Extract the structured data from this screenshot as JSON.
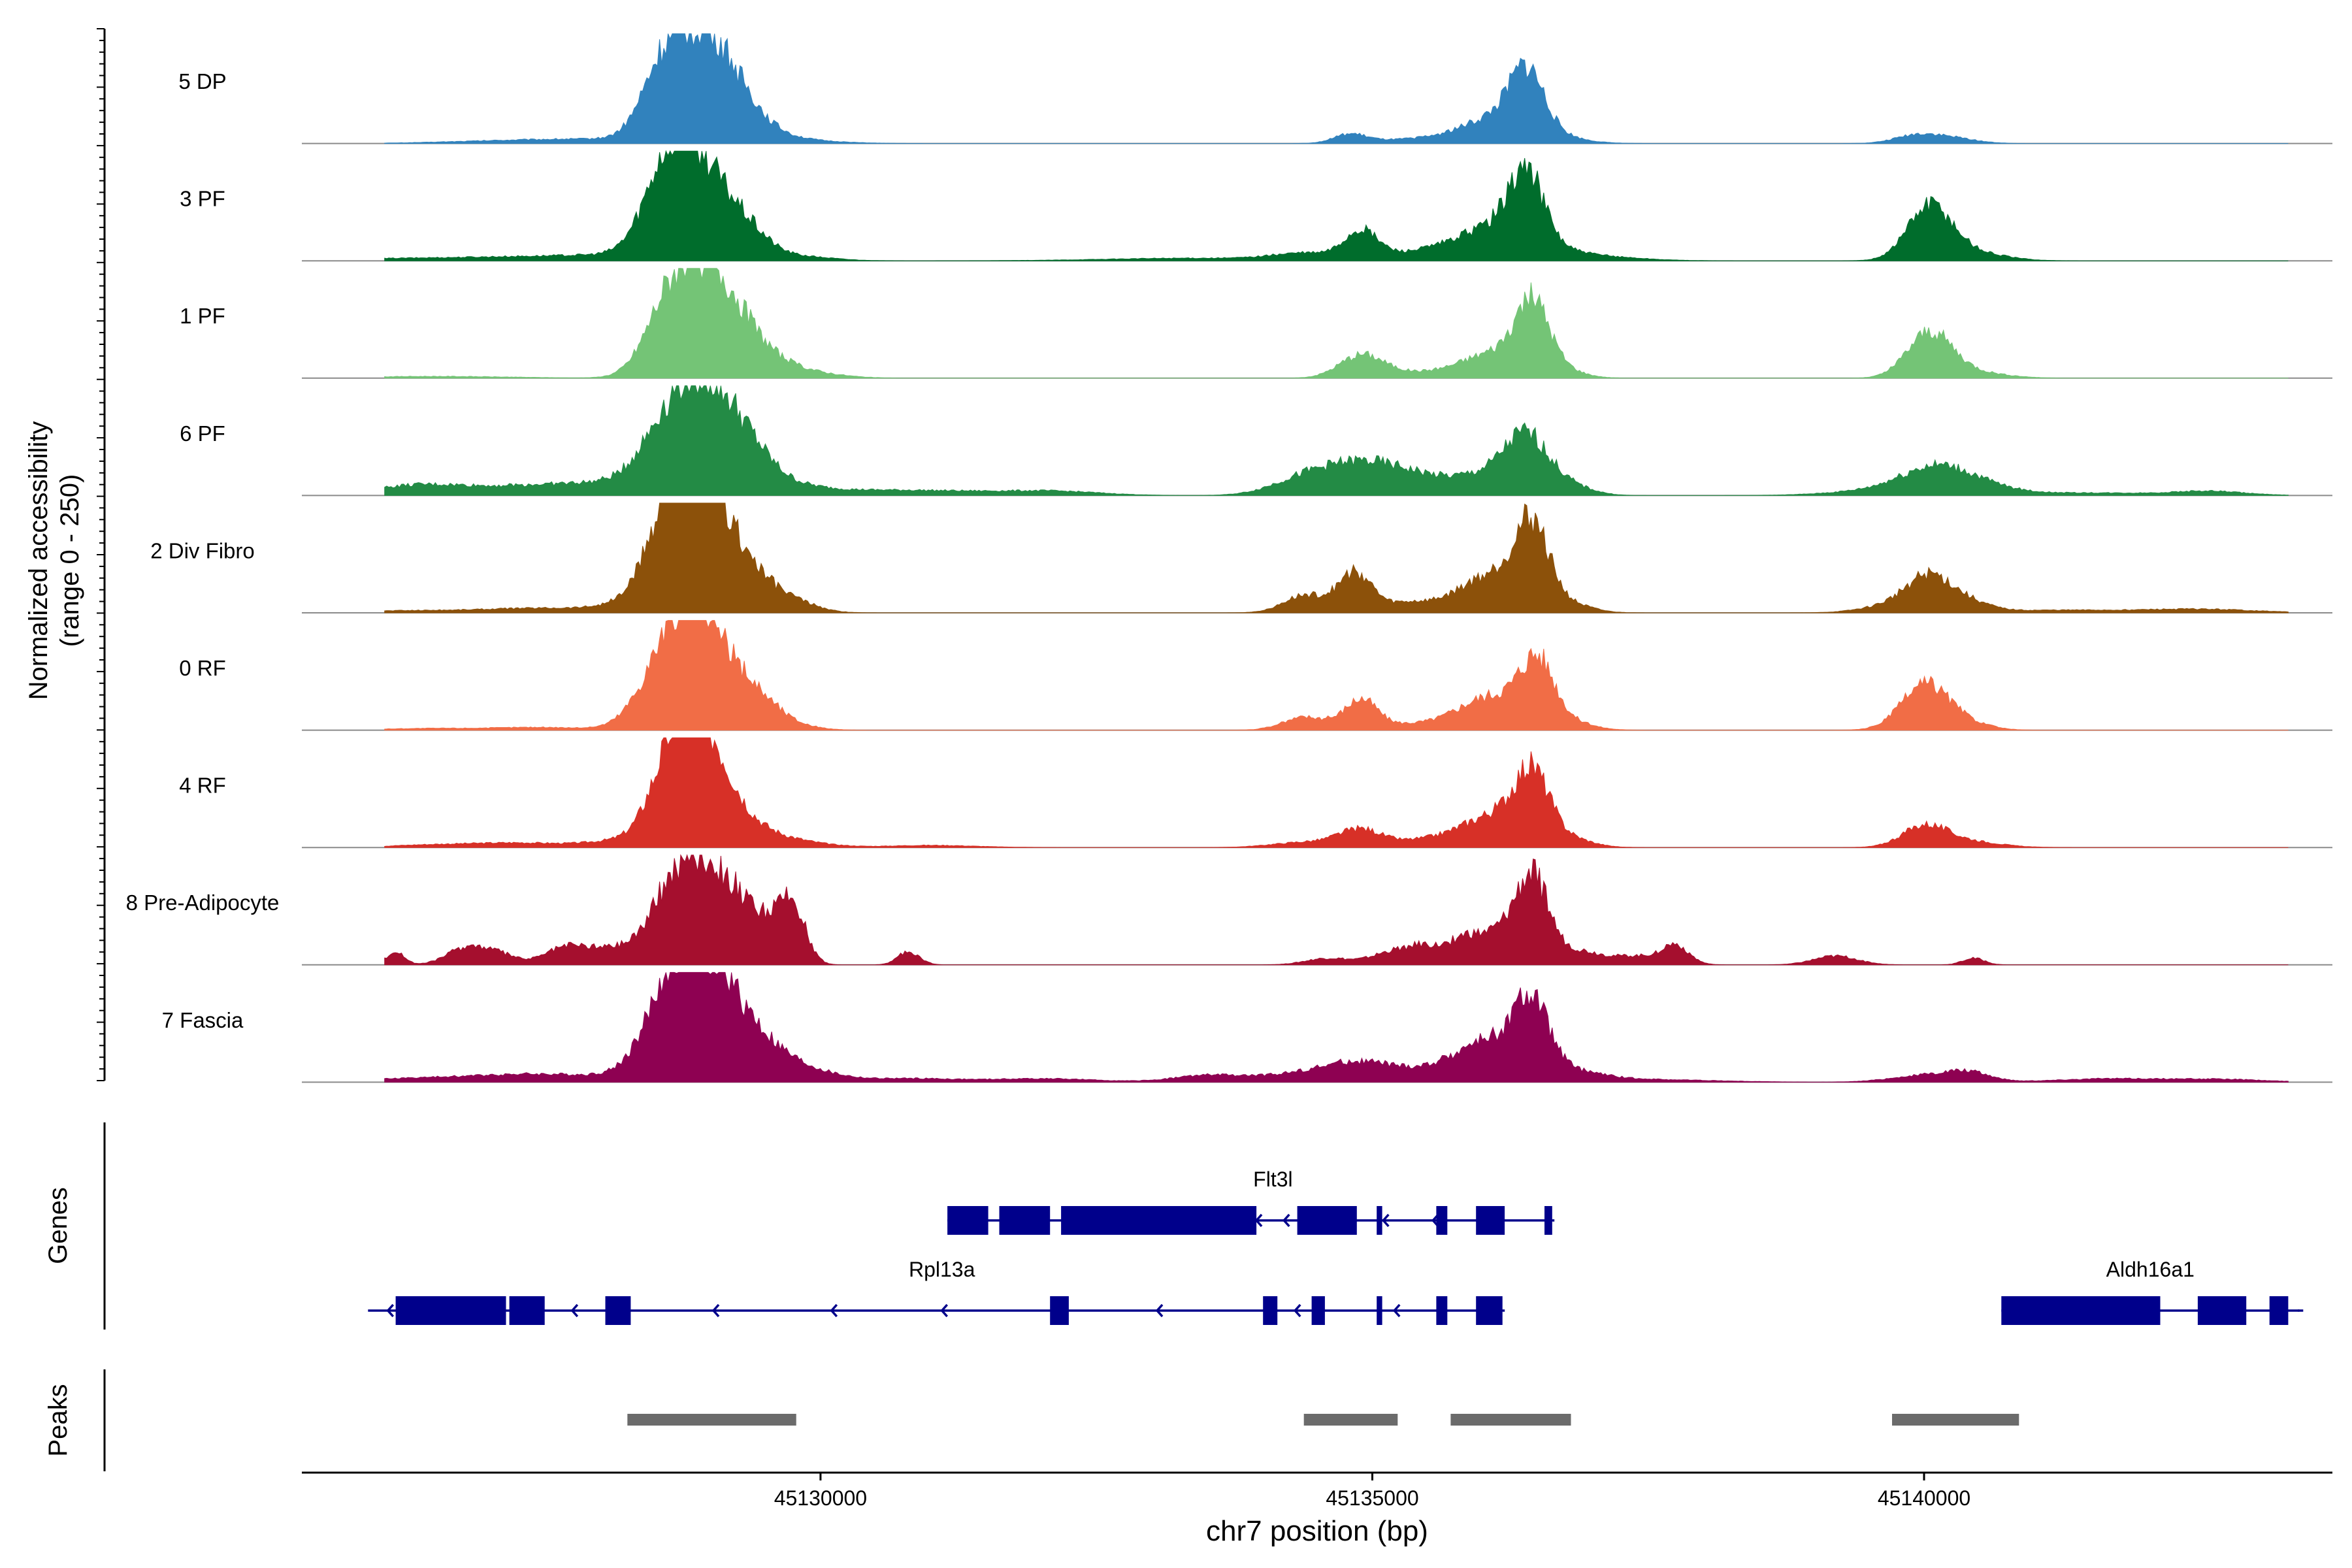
{
  "chart_data": {
    "type": "area",
    "title": "",
    "ylabel_line1": "Normalized accessibility",
    "ylabel_line2": "(range 0 - 250)",
    "xlabel": "chr7 position (bp)",
    "chromosome": "chr7",
    "xlim": [
      45125300,
      45143700
    ],
    "ylim": [
      0,
      250
    ],
    "x_ticks": [
      45130000,
      45135000,
      45140000
    ],
    "x_tick_labels": [
      "45130000",
      "45135000",
      "45140000"
    ],
    "genes_panel_label": "Genes",
    "peaks_panel_label": "Peaks",
    "tracks": [
      {
        "name": "5 DP",
        "color": "#3182BD",
        "bumps": [
          [
            45127200,
            600,
            6
          ],
          [
            45128000,
            500,
            7
          ],
          [
            45128550,
            180,
            90
          ],
          [
            45128900,
            300,
            220
          ],
          [
            45129200,
            300,
            50
          ],
          [
            45129700,
            400,
            8
          ],
          [
            45134800,
            150,
            20
          ],
          [
            45135300,
            300,
            8
          ],
          [
            45135900,
            300,
            10
          ],
          [
            45136250,
            350,
            60
          ],
          [
            45136400,
            150,
            120
          ],
          [
            45139950,
            200,
            20
          ],
          [
            45140300,
            200,
            10
          ]
        ]
      },
      {
        "name": "3 PF",
        "color": "#006D2C",
        "bumps": [
          [
            45126200,
            500,
            5
          ],
          [
            45127200,
            500,
            8
          ],
          [
            45128000,
            400,
            10
          ],
          [
            45128600,
            200,
            100
          ],
          [
            45128850,
            300,
            230
          ],
          [
            45129350,
            200,
            40
          ],
          [
            45129800,
            300,
            10
          ],
          [
            45133400,
            800,
            6
          ],
          [
            45134400,
            300,
            15
          ],
          [
            45134900,
            150,
            60
          ],
          [
            45135500,
            400,
            20
          ],
          [
            45136200,
            350,
            80
          ],
          [
            45136400,
            150,
            140
          ],
          [
            45137000,
            400,
            10
          ],
          [
            45140050,
            200,
            120
          ],
          [
            45140400,
            300,
            20
          ]
        ]
      },
      {
        "name": "1 PF",
        "color": "#74C476",
        "bumps": [
          [
            45126500,
            700,
            4
          ],
          [
            45128600,
            200,
            90
          ],
          [
            45128950,
            300,
            240
          ],
          [
            45129400,
            300,
            40
          ],
          [
            45129900,
            300,
            10
          ],
          [
            45134900,
            200,
            50
          ],
          [
            45135300,
            300,
            10
          ],
          [
            45135900,
            300,
            15
          ],
          [
            45136200,
            300,
            50
          ],
          [
            45136450,
            150,
            140
          ],
          [
            45136700,
            200,
            15
          ],
          [
            45140050,
            200,
            100
          ],
          [
            45140400,
            300,
            15
          ]
        ]
      },
      {
        "name": "6 PF",
        "color": "#238B45",
        "bumps": [
          [
            45126300,
            400,
            15
          ],
          [
            45127000,
            700,
            15
          ],
          [
            45127700,
            500,
            12
          ],
          [
            45128200,
            400,
            15
          ],
          [
            45128600,
            250,
            90
          ],
          [
            45128950,
            300,
            220
          ],
          [
            45129350,
            250,
            60
          ],
          [
            45129800,
            300,
            15
          ],
          [
            45130500,
            500,
            10
          ],
          [
            45131500,
            600,
            8
          ],
          [
            45132200,
            400,
            6
          ],
          [
            45134400,
            300,
            40
          ],
          [
            45134900,
            300,
            60
          ],
          [
            45135400,
            300,
            40
          ],
          [
            45136000,
            250,
            40
          ],
          [
            45136400,
            200,
            130
          ],
          [
            45136800,
            200,
            20
          ],
          [
            45139800,
            500,
            15
          ],
          [
            45140100,
            300,
            50
          ],
          [
            45140500,
            300,
            15
          ],
          [
            45141500,
            800,
            6
          ],
          [
            45142600,
            300,
            8
          ]
        ]
      },
      {
        "name": "2 Div Fibro",
        "color": "#8C510A",
        "bumps": [
          [
            45126300,
            600,
            5
          ],
          [
            45127500,
            500,
            10
          ],
          [
            45128300,
            300,
            15
          ],
          [
            45128650,
            200,
            120
          ],
          [
            45128900,
            300,
            270
          ],
          [
            45129400,
            300,
            50
          ],
          [
            45129800,
            200,
            10
          ],
          [
            45134400,
            200,
            40
          ],
          [
            45134850,
            150,
            90
          ],
          [
            45135300,
            200,
            20
          ],
          [
            45135900,
            300,
            30
          ],
          [
            45136200,
            300,
            70
          ],
          [
            45136450,
            150,
            160
          ],
          [
            45136800,
            200,
            15
          ],
          [
            45139800,
            300,
            20
          ],
          [
            45140050,
            200,
            70
          ],
          [
            45140400,
            200,
            20
          ],
          [
            45141200,
            600,
            6
          ],
          [
            45142500,
            500,
            8
          ]
        ]
      },
      {
        "name": "0 RF",
        "color": "#F16D46",
        "bumps": [
          [
            45126500,
            500,
            4
          ],
          [
            45127500,
            400,
            6
          ],
          [
            45128600,
            250,
            90
          ],
          [
            45128900,
            300,
            240
          ],
          [
            45129450,
            200,
            50
          ],
          [
            45129800,
            200,
            8
          ],
          [
            45134400,
            200,
            30
          ],
          [
            45134900,
            150,
            70
          ],
          [
            45135300,
            200,
            10
          ],
          [
            45135900,
            300,
            30
          ],
          [
            45136200,
            300,
            60
          ],
          [
            45136500,
            150,
            130
          ],
          [
            45136800,
            200,
            15
          ],
          [
            45139900,
            200,
            30
          ],
          [
            45140050,
            200,
            80
          ],
          [
            45140400,
            200,
            15
          ]
        ]
      },
      {
        "name": "4 RF",
        "color": "#D73027",
        "bumps": [
          [
            45126500,
            400,
            6
          ],
          [
            45127300,
            400,
            10
          ],
          [
            45128200,
            300,
            15
          ],
          [
            45128650,
            200,
            120
          ],
          [
            45128900,
            250,
            240
          ],
          [
            45129300,
            300,
            40
          ],
          [
            45129800,
            300,
            10
          ],
          [
            45131000,
            400,
            5
          ],
          [
            45134400,
            300,
            12
          ],
          [
            45134900,
            200,
            40
          ],
          [
            45135400,
            200,
            10
          ],
          [
            45135900,
            300,
            30
          ],
          [
            45136250,
            300,
            60
          ],
          [
            45136450,
            150,
            130
          ],
          [
            45136800,
            200,
            15
          ],
          [
            45140000,
            200,
            45
          ],
          [
            45140350,
            300,
            15
          ]
        ]
      },
      {
        "name": "8 Pre-Adipocyte",
        "color": "#A50F2E",
        "bumps": [
          [
            45126150,
            80,
            30
          ],
          [
            45126800,
            180,
            40
          ],
          [
            45127100,
            150,
            20
          ],
          [
            45127700,
            200,
            40
          ],
          [
            45128100,
            200,
            30
          ],
          [
            45128600,
            220,
            90
          ],
          [
            45128900,
            250,
            200
          ],
          [
            45129250,
            200,
            90
          ],
          [
            45129550,
            150,
            60
          ],
          [
            45129750,
            120,
            120
          ],
          [
            45130800,
            100,
            30
          ],
          [
            45134600,
            200,
            15
          ],
          [
            45135200,
            200,
            30
          ],
          [
            45135500,
            150,
            35
          ],
          [
            45135800,
            120,
            40
          ],
          [
            45136100,
            200,
            70
          ],
          [
            45136450,
            150,
            190
          ],
          [
            45136850,
            200,
            30
          ],
          [
            45137400,
            250,
            20
          ],
          [
            45137750,
            120,
            40
          ],
          [
            45139200,
            200,
            20
          ],
          [
            45140450,
            100,
            15
          ]
        ]
      },
      {
        "name": "7 Fascia",
        "color": "#8E0152",
        "bumps": [
          [
            45126500,
            600,
            10
          ],
          [
            45127300,
            400,
            12
          ],
          [
            45128000,
            400,
            12
          ],
          [
            45128650,
            250,
            140
          ],
          [
            45128950,
            300,
            220
          ],
          [
            45129400,
            300,
            70
          ],
          [
            45129900,
            300,
            20
          ],
          [
            45130800,
            400,
            8
          ],
          [
            45132000,
            500,
            8
          ],
          [
            45133500,
            300,
            15
          ],
          [
            45134400,
            400,
            20
          ],
          [
            45134900,
            300,
            35
          ],
          [
            45135400,
            300,
            15
          ],
          [
            45135900,
            300,
            40
          ],
          [
            45136200,
            300,
            70
          ],
          [
            45136450,
            150,
            130
          ],
          [
            45136800,
            300,
            20
          ],
          [
            45137500,
            600,
            6
          ],
          [
            45140000,
            300,
            15
          ],
          [
            45140400,
            200,
            20
          ],
          [
            45141700,
            500,
            8
          ],
          [
            45142700,
            400,
            6
          ]
        ]
      }
    ],
    "genes": [
      {
        "name": "Flt3l",
        "row": 1,
        "strand": "-",
        "start": 45131150,
        "end": 45136650,
        "exons": [
          [
            45131150,
            45131520
          ],
          [
            45131620,
            45132080
          ],
          [
            45132180,
            45133950
          ],
          [
            45134320,
            45134860
          ],
          [
            45135040,
            45135090
          ],
          [
            45135580,
            45135680
          ],
          [
            45135940,
            45136200
          ],
          [
            45136560,
            45136630
          ]
        ],
        "arrows": [
          45133950,
          45134200,
          45135100,
          45135550
        ]
      },
      {
        "name": "Rpl13a",
        "row": 2,
        "strand": "-",
        "start": 45125900,
        "end": 45136200,
        "exons": [
          [
            45126150,
            45127150
          ],
          [
            45127180,
            45127500
          ],
          [
            45128050,
            45128280
          ],
          [
            45132080,
            45132250
          ],
          [
            45134010,
            45134140
          ],
          [
            45134450,
            45134570
          ],
          [
            45135040,
            45135090
          ],
          [
            45135580,
            45135680
          ],
          [
            45135940,
            45136180
          ]
        ],
        "arrows": [
          45126080,
          45127750,
          45129030,
          45130100,
          45131100,
          45133050,
          45134300,
          45135200,
          45136120
        ]
      },
      {
        "name": "Aldh16a1",
        "row": 2,
        "strand": "+",
        "start": 45140700,
        "end": 45143400,
        "exons": [
          [
            45140700,
            45142140
          ],
          [
            45142480,
            45142920
          ],
          [
            45143130,
            45143300
          ]
        ],
        "arrows": []
      }
    ],
    "peaks": [
      [
        45128250,
        45129780
      ],
      [
        45134380,
        45135230
      ],
      [
        45135710,
        45136800
      ],
      [
        45139710,
        45140860
      ]
    ]
  }
}
